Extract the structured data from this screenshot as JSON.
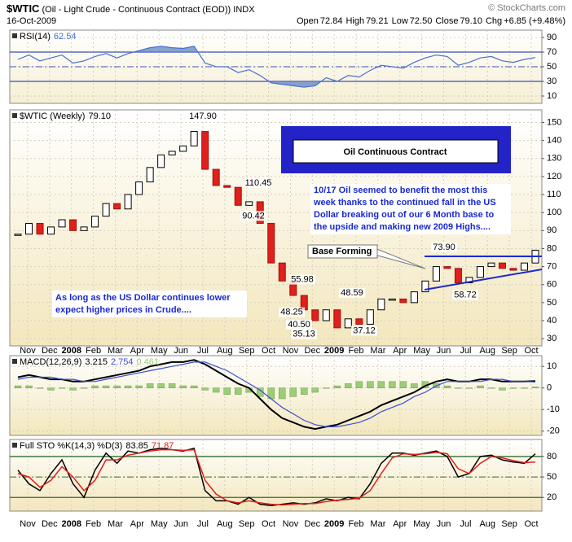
{
  "header": {
    "symbol": "$WTIC",
    "description": "(Oil - Light Crude - Continuous Contract (EOD))",
    "exchange": "INDX",
    "copyright": "© StockCharts.com",
    "date": "16-Oct-2009",
    "quote": [
      {
        "label": "Open",
        "value": "72.84"
      },
      {
        "label": "High",
        "value": "79.21"
      },
      {
        "label": "Low",
        "value": "72.50"
      },
      {
        "label": "Close",
        "value": "79.10"
      },
      {
        "label": "Chg",
        "value": "+6.85 (+9.48%)"
      }
    ]
  },
  "chart_data": [
    {
      "type": "rsi",
      "title": "RSI(14)",
      "series": [
        {
          "color": "#4a6fd0",
          "values": [
            60,
            66,
            58,
            62,
            66,
            55,
            58,
            64,
            68,
            62,
            68,
            72,
            76,
            78,
            76,
            75,
            78,
            55,
            50,
            50,
            42,
            46,
            38,
            28,
            26,
            24,
            22,
            24,
            35,
            30,
            38,
            36,
            45,
            52,
            50,
            48,
            56,
            62,
            66,
            64,
            52,
            56,
            62,
            64,
            58,
            56,
            60,
            62.54
          ]
        }
      ],
      "ylim": [
        0,
        100
      ],
      "yticks": [
        90,
        70,
        50,
        30,
        10
      ],
      "reference_lines": [
        70,
        50,
        30
      ],
      "reference_color": "#3a4fb8",
      "fill_color": "#5f86c4"
    },
    {
      "type": "candlestick",
      "title": "$WTIC (Weekly)",
      "last_label": "79.10",
      "values": [
        88,
        94,
        88,
        92,
        96,
        90,
        92,
        98,
        105,
        102,
        110,
        117,
        125,
        132,
        134,
        137,
        145,
        124,
        115,
        114,
        104,
        106,
        94,
        72,
        62,
        54,
        46,
        40,
        46,
        36,
        41,
        38,
        46,
        52,
        52,
        50,
        56,
        62,
        70,
        69,
        61,
        64,
        70,
        72,
        69,
        68,
        72,
        79.1
      ],
      "up_color": "#ffffff",
      "down_color": "#e0201c",
      "ylim": [
        26,
        157
      ],
      "yticks": [
        30,
        40,
        50,
        60,
        70,
        80,
        90,
        100,
        110,
        120,
        130,
        140,
        150
      ],
      "grid": true,
      "month_labels": [
        "Nov",
        "Dec",
        "2008",
        "Feb",
        "Mar",
        "Apr",
        "May",
        "Jun",
        "Jul",
        "Aug",
        "Sep",
        "Oct",
        "Nov",
        "Dec",
        "2009",
        "Feb",
        "Mar",
        "Apr",
        "May",
        "Jun",
        "Jul",
        "Aug",
        "Sep",
        "Oct"
      ],
      "annotations": [
        {
          "value": 147.9,
          "label": "147.90"
        },
        {
          "value": 110.45,
          "label": "110.45"
        },
        {
          "value": 90.42,
          "label": "90.42"
        },
        {
          "value": 55.98,
          "label": "55.98"
        },
        {
          "value": 48.25,
          "label": "48.25"
        },
        {
          "value": 40.5,
          "label": "40.50"
        },
        {
          "value": 35.13,
          "label": "35.13"
        },
        {
          "value": 48.59,
          "label": "48.59"
        },
        {
          "value": 37.12,
          "label": "37.12"
        },
        {
          "value": 73.9,
          "label": "73.90"
        },
        {
          "value": 58.72,
          "label": "58.72"
        }
      ],
      "title_box": "Oil Continuous Contract",
      "comment_box": [
        "10/17  Oil seemed to benefit the most this",
        "week thanks to the continued fall in the US",
        "Dollar breaking out of our 6 Month base to",
        "the upside and making new 2009 Highs...."
      ],
      "callout": "Base Forming",
      "note_box": [
        "As long as the US Dollar continues lower",
        "expect higher prices in Crude...."
      ]
    },
    {
      "type": "macd",
      "title": "MACD(12,26,9)",
      "series": [
        {
          "color": "#000000",
          "values": [
            5,
            6,
            5,
            4,
            4,
            3,
            3,
            4,
            5,
            6,
            7,
            8,
            10,
            11,
            12,
            12,
            13,
            11,
            8,
            5,
            2,
            0,
            -5,
            -10,
            -14,
            -16,
            -18,
            -19,
            -18,
            -17,
            -15,
            -13,
            -11,
            -8,
            -6,
            -4,
            -2,
            1,
            3,
            4,
            3,
            3,
            4,
            4,
            3,
            3,
            3,
            3.215
          ]
        },
        {
          "color": "#3a4fd8",
          "values": [
            4,
            5,
            5,
            5,
            4,
            4,
            3,
            3,
            4,
            5,
            6,
            7,
            8,
            9,
            10,
            11,
            12,
            12,
            10,
            8,
            5,
            2,
            -1,
            -5,
            -9,
            -12,
            -15,
            -17,
            -18,
            -18,
            -17,
            -16,
            -14,
            -11,
            -9,
            -7,
            -4,
            -2,
            1,
            3,
            3,
            3,
            3,
            4,
            4,
            3,
            3,
            2.754
          ]
        },
        {
          "color": "#9ccc78",
          "kind": "histogram",
          "values": [
            1,
            1,
            0,
            -1,
            0,
            -1,
            0,
            1,
            1,
            1,
            1,
            1,
            2,
            2,
            2,
            1,
            1,
            -1,
            -2,
            -3,
            -3,
            -2,
            -4,
            -5,
            -5,
            -4,
            -3,
            -2,
            0,
            1,
            2,
            3,
            3,
            3,
            3,
            3,
            2,
            3,
            2,
            1,
            0,
            0,
            1,
            0,
            -1,
            0,
            0,
            0.461
          ]
        }
      ],
      "ylim": [
        -22,
        15
      ],
      "yticks": [
        10,
        0,
        -10,
        -20
      ],
      "grid": true
    },
    {
      "type": "line",
      "title": "Full STO %K(14,3) %D(3)",
      "series": [
        {
          "color": "#000000",
          "values": [
            60,
            40,
            30,
            55,
            75,
            40,
            20,
            60,
            85,
            70,
            88,
            85,
            90,
            92,
            90,
            88,
            92,
            30,
            15,
            15,
            10,
            20,
            10,
            8,
            10,
            12,
            10,
            12,
            18,
            15,
            20,
            18,
            40,
            70,
            85,
            85,
            82,
            85,
            88,
            80,
            50,
            55,
            80,
            82,
            75,
            72,
            70,
            83.85
          ]
        },
        {
          "color": "#e0201c",
          "values": [
            55,
            50,
            35,
            45,
            65,
            50,
            30,
            45,
            75,
            75,
            82,
            85,
            88,
            90,
            90,
            89,
            90,
            45,
            25,
            15,
            12,
            15,
            12,
            10,
            9,
            10,
            11,
            11,
            14,
            16,
            17,
            19,
            30,
            55,
            78,
            84,
            83,
            84,
            86,
            84,
            62,
            55,
            70,
            80,
            78,
            74,
            71,
            71.87
          ]
        }
      ],
      "ylim": [
        0,
        105
      ],
      "yticks": [
        80,
        50,
        20
      ],
      "reference_lines": [
        80,
        50,
        20
      ],
      "reference_color": "#2f6f2f",
      "month_labels": [
        "Nov",
        "Dec",
        "2008",
        "Feb",
        "Mar",
        "Apr",
        "May",
        "Jun",
        "Jul",
        "Aug",
        "Sep",
        "Oct",
        "Nov",
        "Dec",
        "2009",
        "Feb",
        "Mar",
        "Apr",
        "May",
        "Jun",
        "Jul",
        "Aug",
        "Sep",
        "Oct"
      ]
    }
  ]
}
